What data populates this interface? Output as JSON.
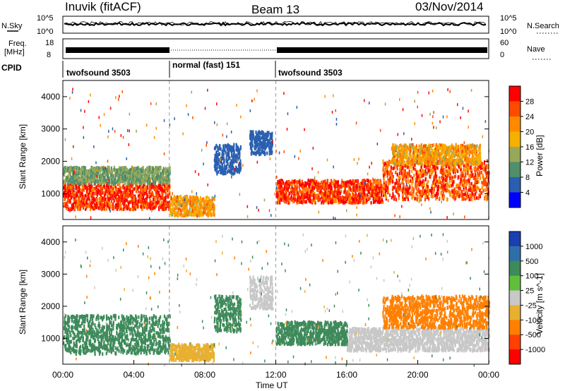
{
  "header": {
    "station": "Inuvik (fitACF)",
    "beam": "Beam 13",
    "date": "03/Nov/2014"
  },
  "noise_panel": {
    "left_label": "N.Sky",
    "left_ticks": [
      "10^5",
      "10^0"
    ],
    "right_ticks": [
      "10^5",
      "10^0"
    ],
    "right_label": "N.Search"
  },
  "freq_panel": {
    "left_label": "Freq.",
    "left_unit": "[MHz]",
    "left_ticks": [
      "18",
      "8"
    ],
    "right_ticks": [
      "60",
      "0"
    ],
    "right_label": "Nave"
  },
  "cpid_panel": {
    "label": "CPID",
    "segments": [
      {
        "name": "twofsound 3503",
        "start_hour": 0,
        "end_hour": 6
      },
      {
        "name": "normal (fast) 151",
        "start_hour": 6,
        "end_hour": 12
      },
      {
        "name": "twofsound 3503",
        "start_hour": 12,
        "end_hour": 24
      }
    ]
  },
  "x_axis": {
    "label": "Time UT",
    "ticks": [
      "00:00",
      "04:00",
      "08:00",
      "12:00",
      "16:00",
      "20:00",
      "00:00"
    ]
  },
  "chart_data": [
    {
      "type": "heatmap",
      "title": "",
      "xlabel": "Time UT",
      "ylabel": "Slant Range [km]",
      "xlim_hours": [
        0,
        24
      ],
      "ylim": [
        200,
        4500
      ],
      "yticks": [
        "1000",
        "2000",
        "3000",
        "4000"
      ],
      "colorbar": {
        "label": "Power [dB]",
        "ticks": [
          "28",
          "24",
          "20",
          "16",
          "12",
          "8",
          "4"
        ],
        "colors": [
          "#ff0000",
          "#ff4a00",
          "#ff8a00",
          "#f5b000",
          "#98a85a",
          "#4f8f6b",
          "#2a5fb0",
          "#0000ff"
        ]
      },
      "regions": [
        {
          "t0": 0.0,
          "t1": 6.0,
          "r0": 500,
          "r1": 1300,
          "value": 28
        },
        {
          "t0": 0.0,
          "t1": 6.0,
          "r0": 1300,
          "r1": 1800,
          "value": 12
        },
        {
          "t0": 6.0,
          "t1": 8.5,
          "r0": 300,
          "r1": 900,
          "value": 20
        },
        {
          "t0": 8.5,
          "t1": 10.0,
          "r0": 1600,
          "r1": 2500,
          "value": 6
        },
        {
          "t0": 10.5,
          "t1": 11.8,
          "r0": 2200,
          "r1": 2900,
          "value": 6
        },
        {
          "t0": 12.0,
          "t1": 18.0,
          "r0": 700,
          "r1": 1400,
          "value": 28
        },
        {
          "t0": 18.0,
          "t1": 24.0,
          "r0": 800,
          "r1": 2000,
          "value": 26
        },
        {
          "t0": 18.5,
          "t1": 23.5,
          "r0": 1900,
          "r1": 2500,
          "value": 20
        }
      ]
    },
    {
      "type": "heatmap",
      "title": "",
      "xlabel": "Time UT",
      "ylabel": "Slant Range [km]",
      "xlim_hours": [
        0,
        24
      ],
      "ylim": [
        200,
        4500
      ],
      "yticks": [
        "1000",
        "2000",
        "3000",
        "4000"
      ],
      "colorbar": {
        "label": "Velocity [m s^-1]",
        "ticks": [
          "1000",
          "500",
          "100",
          "25",
          "-25",
          "-100",
          "-500",
          "-1000"
        ],
        "colors": [
          "#1a3fb0",
          "#2f6fa8",
          "#3e8a5a",
          "#5fbf3a",
          "#c8c8c8",
          "#e8b030",
          "#ff8000",
          "#ff4000",
          "#ff0000"
        ]
      },
      "regions": [
        {
          "t0": 0.0,
          "t1": 6.0,
          "r0": 500,
          "r1": 1700,
          "value": 150
        },
        {
          "t0": 6.0,
          "t1": 8.5,
          "r0": 300,
          "r1": 800,
          "value": -50
        },
        {
          "t0": 8.5,
          "t1": 10.0,
          "r0": 1200,
          "r1": 2300,
          "value": 300
        },
        {
          "t0": 10.5,
          "t1": 11.8,
          "r0": 1900,
          "r1": 2900,
          "value": 0
        },
        {
          "t0": 12.0,
          "t1": 16.0,
          "r0": 800,
          "r1": 1500,
          "value": 400
        },
        {
          "t0": 16.0,
          "t1": 24.0,
          "r0": 600,
          "r1": 1300,
          "value": -20
        },
        {
          "t0": 18.0,
          "t1": 24.0,
          "r0": 1300,
          "r1": 2300,
          "value": -250
        }
      ]
    }
  ]
}
